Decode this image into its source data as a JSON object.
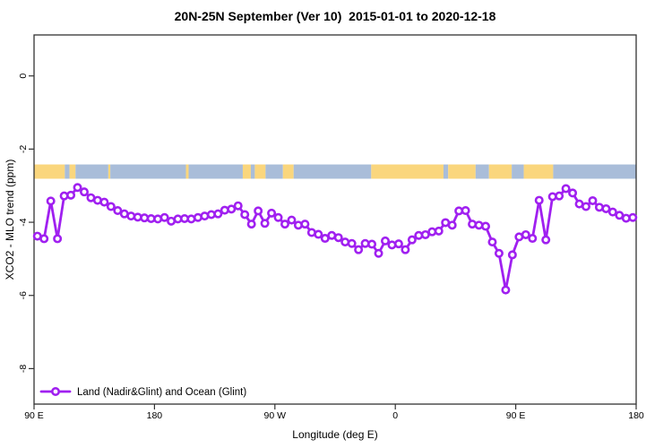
{
  "chart_data": {
    "type": "line",
    "title": "20N-25N September (Ver 10)  2015-01-01 to 2020-12-18",
    "xlabel": "Longitude (deg E)",
    "ylabel": "XCO2 - MLO trend (ppm)",
    "xlim": [
      90,
      540
    ],
    "ylim": [
      -8.97,
      1.12
    ],
    "grid": false,
    "x_ticks": [
      {
        "value": 90,
        "label": "90 E"
      },
      {
        "value": 180,
        "label": "180"
      },
      {
        "value": 270,
        "label": "90 W"
      },
      {
        "value": 360,
        "label": "0"
      },
      {
        "value": 450,
        "label": "90 E"
      },
      {
        "value": 540,
        "label": "180"
      }
    ],
    "y_ticks": [
      {
        "value": 0,
        "label": "0"
      },
      {
        "value": -2,
        "label": "-2"
      },
      {
        "value": -4,
        "label": "-4"
      },
      {
        "value": -6,
        "label": "-6"
      },
      {
        "value": -8,
        "label": "-8"
      }
    ],
    "legend_position": "bottom-left",
    "series": [
      {
        "name": "Land (Nadir&Glint) and Ocean (Glint)",
        "color": "#A020F0",
        "marker": "open-circle",
        "x_start": 92.5,
        "x_step": 5,
        "values": [
          -4.38,
          -4.45,
          -3.42,
          -4.45,
          -3.28,
          -3.26,
          -3.05,
          -3.17,
          -3.33,
          -3.4,
          -3.45,
          -3.57,
          -3.68,
          -3.77,
          -3.83,
          -3.86,
          -3.88,
          -3.9,
          -3.91,
          -3.87,
          -3.97,
          -3.91,
          -3.9,
          -3.91,
          -3.87,
          -3.83,
          -3.79,
          -3.77,
          -3.67,
          -3.64,
          -3.55,
          -3.79,
          -4.05,
          -3.69,
          -4.03,
          -3.75,
          -3.87,
          -4.05,
          -3.94,
          -4.08,
          -4.05,
          -4.28,
          -4.33,
          -4.44,
          -4.36,
          -4.42,
          -4.54,
          -4.58,
          -4.75,
          -4.58,
          -4.6,
          -4.85,
          -4.51,
          -4.62,
          -4.59,
          -4.75,
          -4.48,
          -4.36,
          -4.34,
          -4.26,
          -4.24,
          -4.01,
          -4.08,
          -3.69,
          -3.68,
          -4.05,
          -4.08,
          -4.11,
          -4.54,
          -4.85,
          -5.85,
          -4.89,
          -4.4,
          -4.34,
          -4.44,
          -3.4,
          -4.48,
          -3.3,
          -3.28,
          -3.08,
          -3.2,
          -3.5,
          -3.57,
          -3.41,
          -3.59,
          -3.63,
          -3.72,
          -3.81,
          -3.89,
          -3.87
        ]
      }
    ],
    "map_band": {
      "description": "land/ocean map strip of the 20N-25N latitude band",
      "y_top": -2.42,
      "y_bottom": -2.81,
      "land_color": "#FAD67D",
      "ocean_color": "#A9BDD9",
      "segments": [
        {
          "from": 90,
          "to": 113,
          "surface": "land"
        },
        {
          "from": 113,
          "to": 116.5,
          "surface": "ocean"
        },
        {
          "from": 116.5,
          "to": 121,
          "surface": "land"
        },
        {
          "from": 121,
          "to": 145.5,
          "surface": "ocean"
        },
        {
          "from": 145.5,
          "to": 147,
          "surface": "land"
        },
        {
          "from": 147,
          "to": 203.5,
          "surface": "ocean"
        },
        {
          "from": 203.5,
          "to": 205.5,
          "surface": "land"
        },
        {
          "from": 205.5,
          "to": 246,
          "surface": "ocean"
        },
        {
          "from": 246,
          "to": 252,
          "surface": "land"
        },
        {
          "from": 252,
          "to": 255,
          "surface": "ocean"
        },
        {
          "from": 255,
          "to": 263,
          "surface": "land"
        },
        {
          "from": 263,
          "to": 276,
          "surface": "ocean"
        },
        {
          "from": 276,
          "to": 284,
          "surface": "land"
        },
        {
          "from": 284,
          "to": 342,
          "surface": "ocean"
        },
        {
          "from": 342,
          "to": 396,
          "surface": "land"
        },
        {
          "from": 396,
          "to": 399.5,
          "surface": "ocean"
        },
        {
          "from": 399.5,
          "to": 420,
          "surface": "land"
        },
        {
          "from": 420,
          "to": 430,
          "surface": "ocean"
        },
        {
          "from": 430,
          "to": 447,
          "surface": "land"
        },
        {
          "from": 447,
          "to": 456,
          "surface": "ocean"
        },
        {
          "from": 456,
          "to": 478,
          "surface": "land"
        },
        {
          "from": 478,
          "to": 540,
          "surface": "ocean"
        }
      ]
    }
  },
  "colors": {
    "line": "#A020F0",
    "frame": "#333333",
    "text": "#000000",
    "background": "#FFFFFF"
  }
}
